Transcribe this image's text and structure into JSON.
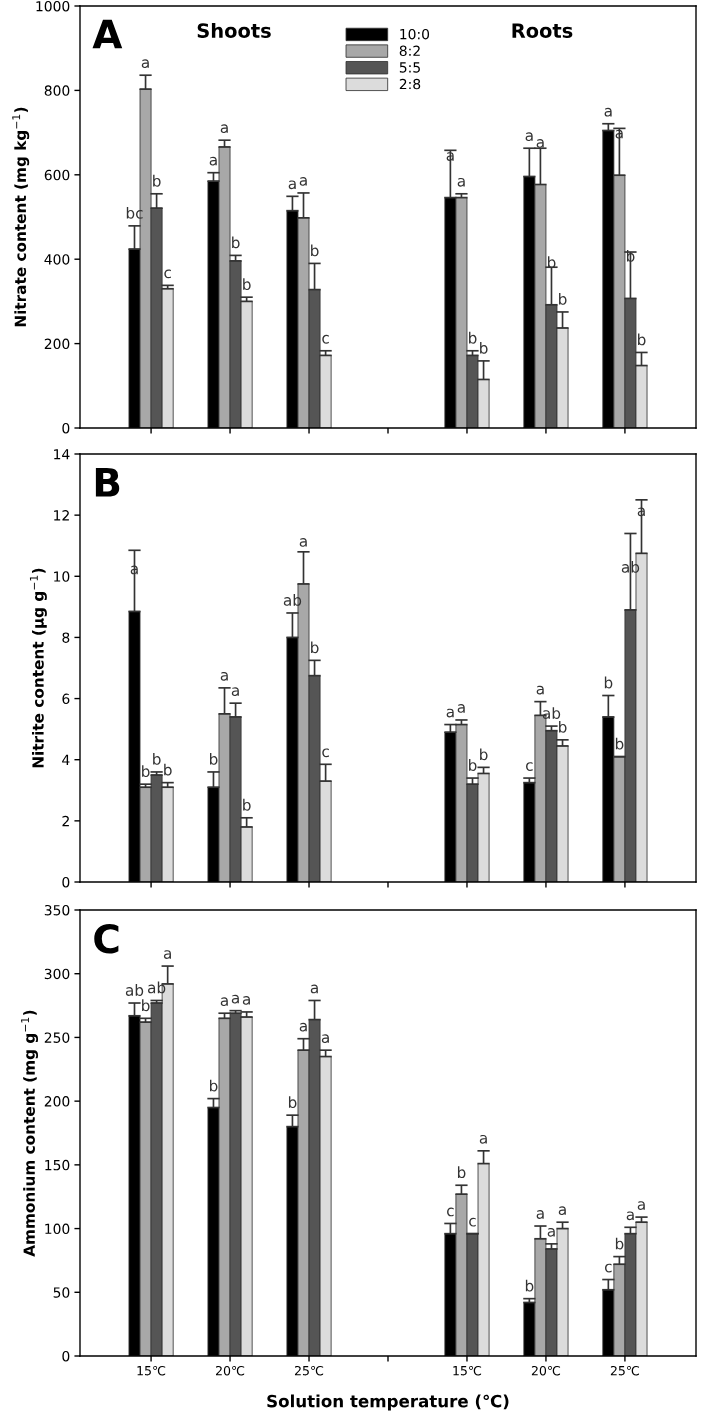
{
  "chart_data": [
    {
      "type": "bar",
      "title": "A",
      "ylabel": "Nitrate content (mg kg$^{−1}$)",
      "categories": [
        null,
        null,
        null,
        null,
        null,
        null,
        null
      ],
      "ylim": [
        0,
        1000
      ],
      "yticks": [
        0,
        200,
        400,
        600,
        800,
        1000
      ],
      "legend": "top",
      "grid": false,
      "tick_labels": "y",
      "annotations": [
        "Shoots",
        "Roots"
      ],
      "series": [
        {
          "name": "10:0",
          "color": "#000000",
          "values": [
            424,
            585,
            515,
            null,
            546,
            596,
            705
          ],
          "errors": [
            [
              424,
              479
            ],
            [
              585,
              605
            ],
            [
              515,
              549
            ],
            null,
            [
              546,
              658
            ],
            [
              596,
              663
            ],
            [
              705,
              721
            ]
          ],
          "value_labels": [
            "bc",
            "a",
            "a",
            null,
            "a",
            "a",
            "a"
          ]
        },
        {
          "name": "8:2",
          "color": "#a8a8a8",
          "values": [
            803,
            666,
            498,
            null,
            546,
            577,
            599
          ],
          "errors": [
            [
              803,
              836
            ],
            [
              666,
              682
            ],
            [
              498,
              557
            ],
            null,
            [
              546,
              555
            ],
            [
              577,
              663
            ],
            [
              599,
              710
            ]
          ],
          "value_labels": [
            "a",
            "a",
            "a",
            null,
            "a",
            "a",
            "a"
          ]
        },
        {
          "name": "5:5",
          "color": "#555555",
          "values": [
            521,
            396,
            328,
            null,
            172,
            292,
            307
          ],
          "errors": [
            [
              521,
              555
            ],
            [
              396,
              409
            ],
            [
              328,
              390
            ],
            null,
            [
              172,
              183
            ],
            [
              292,
              381
            ],
            [
              307,
              417
            ]
          ],
          "value_labels": [
            "b",
            "b",
            "b",
            null,
            "b",
            "b",
            "b"
          ]
        },
        {
          "name": "2:8",
          "color": "#dcdcdc",
          "values": [
            330,
            300,
            172,
            null,
            115,
            237,
            148
          ],
          "errors": [
            [
              330,
              338
            ],
            [
              300,
              310
            ],
            [
              172,
              183
            ],
            null,
            [
              115,
              159
            ],
            [
              237,
              275
            ],
            [
              148,
              179
            ]
          ],
          "value_labels": [
            "c",
            "b",
            "c",
            null,
            "b",
            "b",
            "b"
          ]
        }
      ]
    },
    {
      "type": "bar",
      "title": "B",
      "ylabel": "Nitrite content (μg g$^{−1}$)",
      "categories": [
        null,
        null,
        null,
        null,
        null,
        null,
        null
      ],
      "ylim": [
        0,
        14
      ],
      "yticks": [
        0,
        2,
        4,
        6,
        8,
        10,
        12,
        14
      ],
      "grid": false,
      "tick_labels": "y",
      "series": [
        {
          "color": "#000000",
          "values": [
            8.85,
            3.1,
            8.0,
            null,
            4.9,
            3.25,
            5.4
          ],
          "errors": [
            [
              8.85,
              10.85
            ],
            [
              3.1,
              3.6
            ],
            [
              8.0,
              8.8
            ],
            null,
            [
              4.9,
              5.15
            ],
            [
              3.25,
              3.4
            ],
            [
              5.4,
              6.1
            ]
          ],
          "value_labels": [
            "a",
            "b",
            "ab",
            null,
            "a",
            "c",
            "b"
          ]
        },
        {
          "color": "#a8a8a8",
          "values": [
            3.1,
            5.5,
            9.75,
            null,
            5.15,
            5.45,
            4.1
          ],
          "errors": [
            [
              3.1,
              3.2
            ],
            [
              5.5,
              6.35
            ],
            [
              9.75,
              10.8
            ],
            null,
            [
              5.15,
              5.3
            ],
            [
              5.45,
              5.9
            ],
            [
              4.1,
              4.1
            ]
          ],
          "value_labels": [
            "b",
            "a",
            "a",
            null,
            "a",
            "a",
            "b"
          ]
        },
        {
          "color": "#555555",
          "values": [
            3.5,
            5.4,
            6.75,
            null,
            3.2,
            4.95,
            8.9
          ],
          "errors": [
            [
              3.5,
              3.6
            ],
            [
              5.4,
              5.85
            ],
            [
              6.75,
              7.25
            ],
            null,
            [
              3.2,
              3.4
            ],
            [
              4.95,
              5.1
            ],
            [
              8.9,
              11.4
            ]
          ],
          "value_labels": [
            "b",
            "a",
            "b",
            null,
            "b",
            "ab",
            "ab"
          ]
        },
        {
          "color": "#dcdcdc",
          "values": [
            3.1,
            1.8,
            3.3,
            null,
            3.55,
            4.45,
            10.75
          ],
          "errors": [
            [
              3.1,
              3.25
            ],
            [
              1.8,
              2.1
            ],
            [
              3.3,
              3.85
            ],
            null,
            [
              3.55,
              3.75
            ],
            [
              4.45,
              4.65
            ],
            [
              10.75,
              12.5
            ]
          ],
          "value_labels": [
            "b",
            "b",
            "c",
            null,
            "b",
            "b",
            "a"
          ]
        }
      ]
    },
    {
      "type": "bar",
      "title": "C",
      "ylabel": "Ammonium content (mg g$^{−1}$)",
      "xlabel": "Solution temperature (℃)",
      "categories": [
        "15℃",
        "20℃",
        "25℃",
        null,
        "15℃",
        "20℃",
        "25℃"
      ],
      "ylim": [
        0,
        350
      ],
      "yticks": [
        0,
        50,
        100,
        150,
        200,
        250,
        300,
        350
      ],
      "grid": false,
      "series": [
        {
          "color": "#000000",
          "values": [
            267,
            195,
            180,
            null,
            96,
            42,
            52
          ],
          "errors": [
            [
              267,
              277
            ],
            [
              195,
              202
            ],
            [
              180,
              189
            ],
            null,
            [
              96,
              104
            ],
            [
              42,
              45
            ],
            [
              52,
              60
            ]
          ],
          "value_labels": [
            "ab",
            "b",
            "b",
            null,
            "c",
            "b",
            "c"
          ]
        },
        {
          "color": "#a8a8a8",
          "values": [
            262,
            265,
            240,
            null,
            127,
            92,
            72
          ],
          "errors": [
            [
              262,
              265
            ],
            [
              265,
              269
            ],
            [
              240,
              249
            ],
            null,
            [
              127,
              134
            ],
            [
              92,
              102
            ],
            [
              72,
              78
            ]
          ],
          "value_labels": [
            "b",
            "a",
            "a",
            null,
            "b",
            "a",
            "b"
          ]
        },
        {
          "color": "#555555",
          "values": [
            277,
            269,
            264,
            null,
            96,
            84,
            96
          ],
          "errors": [
            [
              277,
              279
            ],
            [
              269,
              271
            ],
            [
              264,
              279
            ],
            null,
            [
              96,
              96
            ],
            [
              84,
              88
            ],
            [
              96,
              101
            ]
          ],
          "value_labels": [
            "ab",
            "a",
            "a",
            null,
            "c",
            "a",
            "a"
          ]
        },
        {
          "color": "#dcdcdc",
          "values": [
            292,
            266,
            235,
            null,
            151,
            100,
            105
          ],
          "errors": [
            [
              292,
              306
            ],
            [
              266,
              270
            ],
            [
              235,
              240
            ],
            null,
            [
              151,
              161
            ],
            [
              100,
              105
            ],
            [
              105,
              109
            ]
          ],
          "value_labels": [
            "a",
            "a",
            "a",
            null,
            "a",
            "a",
            "a"
          ]
        }
      ]
    }
  ]
}
